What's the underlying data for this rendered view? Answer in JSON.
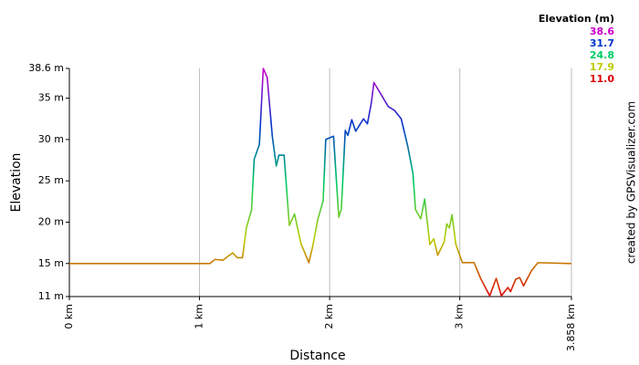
{
  "chart_data": {
    "type": "line",
    "x_label": "Distance",
    "y_label": "Elevation",
    "credit": "created by GPSVisualizer.com",
    "x": [
      0,
      1.08,
      1.12,
      1.18,
      1.255,
      1.29,
      1.33,
      1.36,
      1.4,
      1.42,
      1.46,
      1.49,
      1.52,
      1.56,
      1.59,
      1.61,
      1.65,
      1.69,
      1.73,
      1.78,
      1.84,
      1.87,
      1.91,
      1.95,
      1.97,
      2.03,
      2.07,
      2.09,
      2.12,
      2.14,
      2.17,
      2.2,
      2.26,
      2.29,
      2.32,
      2.34,
      2.45,
      2.5,
      2.55,
      2.6,
      2.64,
      2.66,
      2.7,
      2.73,
      2.77,
      2.8,
      2.83,
      2.88,
      2.9,
      2.92,
      2.94,
      2.97,
      3.02,
      3.11,
      3.16,
      3.23,
      3.28,
      3.32,
      3.37,
      3.39,
      3.43,
      3.46,
      3.49,
      3.55,
      3.6,
      3.858
    ],
    "values": [
      15,
      15,
      15.5,
      15.4,
      16.3,
      15.7,
      15.7,
      19.3,
      21.5,
      27.6,
      29.4,
      38.6,
      37.5,
      30.3,
      26.8,
      28.1,
      28.1,
      19.6,
      21.0,
      17.4,
      15.1,
      17.1,
      20.4,
      22.6,
      30.0,
      30.4,
      20.6,
      21.6,
      31.1,
      30.5,
      32.4,
      31.0,
      32.5,
      31.9,
      34.4,
      36.9,
      34.0,
      33.5,
      32.5,
      29.2,
      25.9,
      21.5,
      20.4,
      22.8,
      17.3,
      18.0,
      16.0,
      17.6,
      19.8,
      19.3,
      20.9,
      17.3,
      15.1,
      15.1,
      13.2,
      11.1,
      13.2,
      11.1,
      12.1,
      11.6,
      13.1,
      13.3,
      12.3,
      14.1,
      15.1,
      15
    ],
    "xlim": [
      0,
      3.858
    ],
    "xticks": [
      {
        "value": 0,
        "label": "0 km"
      },
      {
        "value": 1,
        "label": "1 km"
      },
      {
        "value": 2,
        "label": "2 km"
      },
      {
        "value": 3,
        "label": "3 km"
      },
      {
        "value": 3.858,
        "label": "3.858 km"
      }
    ],
    "ylim": [
      11,
      38.6
    ],
    "yticks": [
      {
        "value": 11,
        "label": "11 m"
      },
      {
        "value": 15,
        "label": "15 m"
      },
      {
        "value": 20,
        "label": "20 m"
      },
      {
        "value": 25,
        "label": "25 m"
      },
      {
        "value": 30,
        "label": "30 m"
      },
      {
        "value": 35,
        "label": "35 m"
      },
      {
        "value": 38.6,
        "label": "38.6 m"
      }
    ],
    "grid": true,
    "color_scale": {
      "title": "Elevation (m)",
      "values": [
        38.6,
        31.7,
        24.8,
        17.9,
        11
      ],
      "value_labels": [
        "38.6",
        "31.7",
        "24.8",
        "17.9",
        "11.0"
      ],
      "colors": [
        "#cc00cc",
        "#0033cc",
        "#00cc66",
        "#bbcc00",
        "#dd0000"
      ]
    }
  }
}
